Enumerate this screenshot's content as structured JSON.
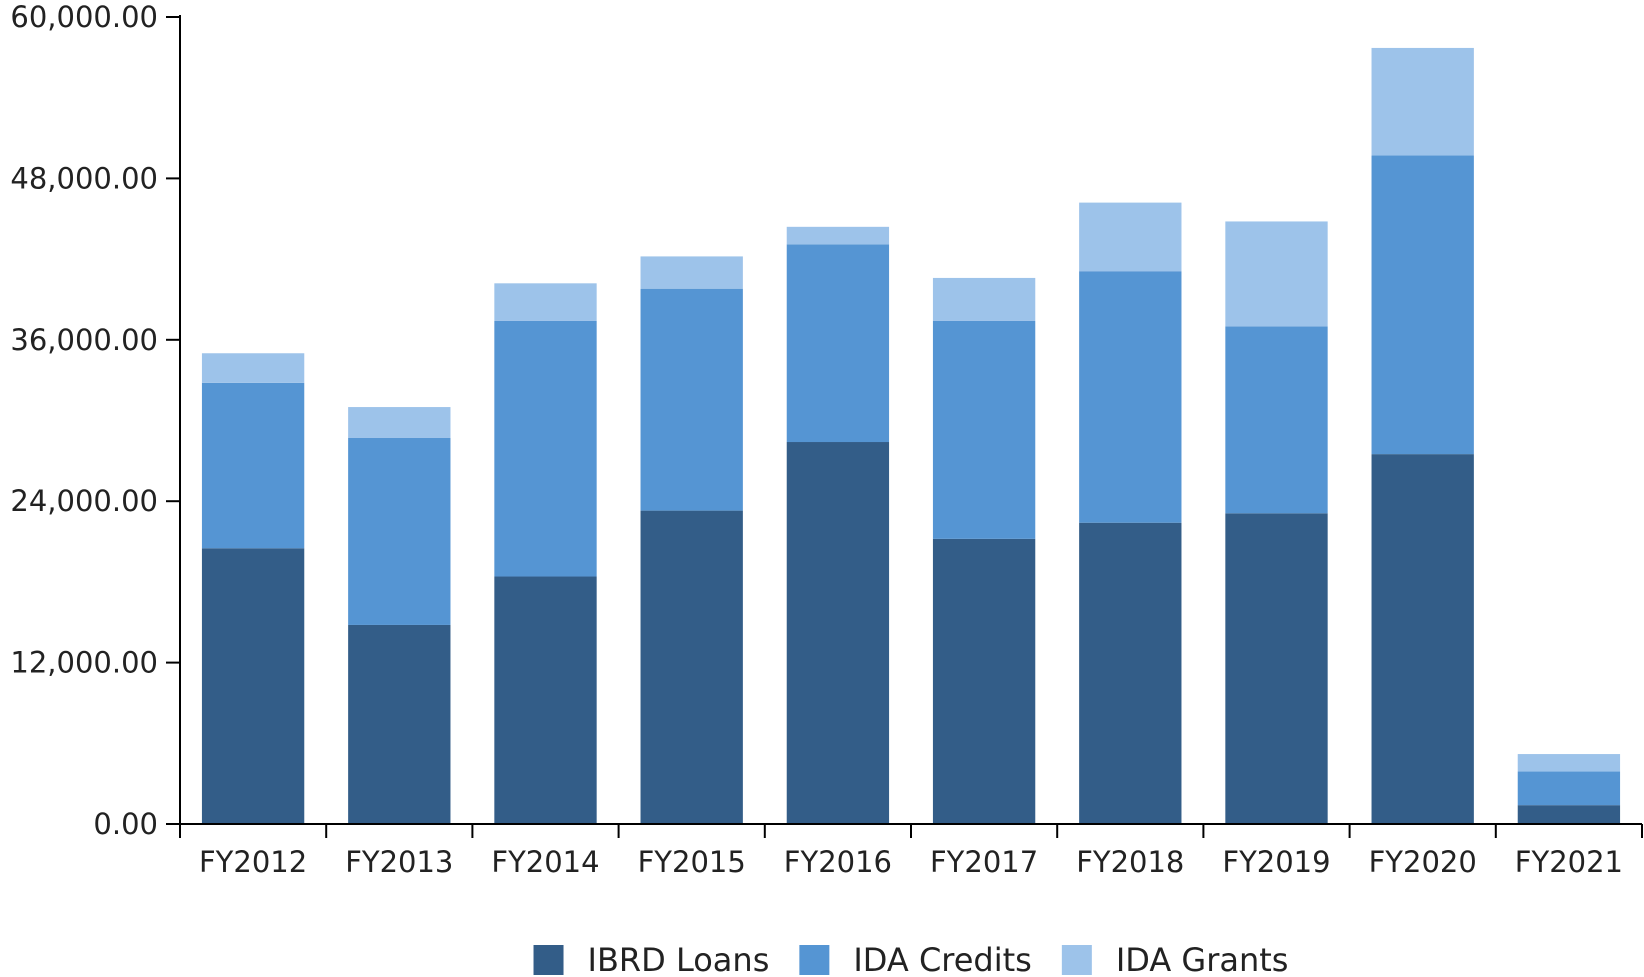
{
  "chart_data": {
    "type": "bar",
    "stacked": true,
    "categories": [
      "FY2012",
      "FY2013",
      "FY2014",
      "FY2015",
      "FY2016",
      "FY2017",
      "FY2018",
      "FY2019",
      "FY2020",
      "FY2021"
    ],
    "series": [
      {
        "name": "IBRD Loans",
        "color": "#335d88",
        "values": [
          20500,
          14800,
          18400,
          23300,
          28400,
          21200,
          22400,
          23100,
          27500,
          1400
        ]
      },
      {
        "name": "IDA Credits",
        "color": "#5595d3",
        "values": [
          12300,
          13900,
          19000,
          16500,
          14700,
          16200,
          18700,
          13900,
          22200,
          2500
        ]
      },
      {
        "name": "IDA Grants",
        "color": "#9dc3ea",
        "values": [
          2200,
          2300,
          2800,
          2400,
          1300,
          3200,
          5100,
          7800,
          8000,
          1300
        ]
      }
    ],
    "y_ticks": [
      "0.00",
      "12,000.00",
      "24,000.00",
      "36,000.00",
      "48,000.00",
      "60,000.00"
    ],
    "ylim": [
      0,
      60000
    ],
    "title": "",
    "xlabel": "",
    "ylabel": "",
    "grid": false,
    "legend_position": "bottom-center"
  }
}
